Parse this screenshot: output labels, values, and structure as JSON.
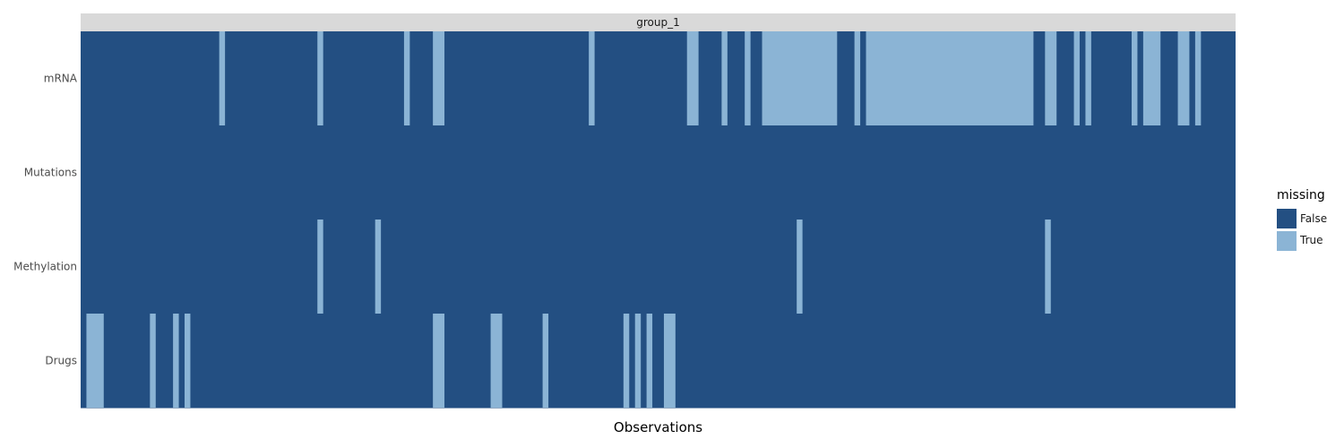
{
  "chart_data": {
    "type": "heatmap",
    "facet_label": "group_1",
    "xlabel": "Observations",
    "ylabel": "",
    "views": [
      "mRNA",
      "Mutations",
      "Methylation",
      "Drugs"
    ],
    "n_observations": 200,
    "legend": {
      "title": "missing",
      "placement": "right",
      "entries": [
        {
          "label": "False",
          "color": "#234f82"
        },
        {
          "label": "True",
          "color": "#8bb4d5"
        }
      ]
    },
    "colors": {
      "false": "#234f82",
      "true": "#8bb4d5",
      "strip": "#d9d9d9"
    },
    "missing_ranges": {
      "mRNA": [
        [
          24,
          24
        ],
        [
          41,
          41
        ],
        [
          56,
          56
        ],
        [
          61,
          62
        ],
        [
          88,
          88
        ],
        [
          105,
          106
        ],
        [
          111,
          111
        ],
        [
          115,
          115
        ],
        [
          118,
          130
        ],
        [
          134,
          134
        ],
        [
          136,
          164
        ],
        [
          167,
          168
        ],
        [
          172,
          172
        ],
        [
          174,
          174
        ],
        [
          182,
          182
        ],
        [
          184,
          186
        ],
        [
          190,
          191
        ],
        [
          193,
          193
        ]
      ],
      "Mutations": [],
      "Methylation": [
        [
          41,
          41
        ],
        [
          51,
          51
        ],
        [
          124,
          124
        ],
        [
          167,
          167
        ]
      ],
      "Drugs": [
        [
          1,
          3
        ],
        [
          12,
          12
        ],
        [
          16,
          16
        ],
        [
          18,
          18
        ],
        [
          61,
          62
        ],
        [
          71,
          72
        ],
        [
          80,
          80
        ],
        [
          94,
          94
        ],
        [
          96,
          96
        ],
        [
          98,
          98
        ],
        [
          101,
          102
        ]
      ]
    }
  }
}
